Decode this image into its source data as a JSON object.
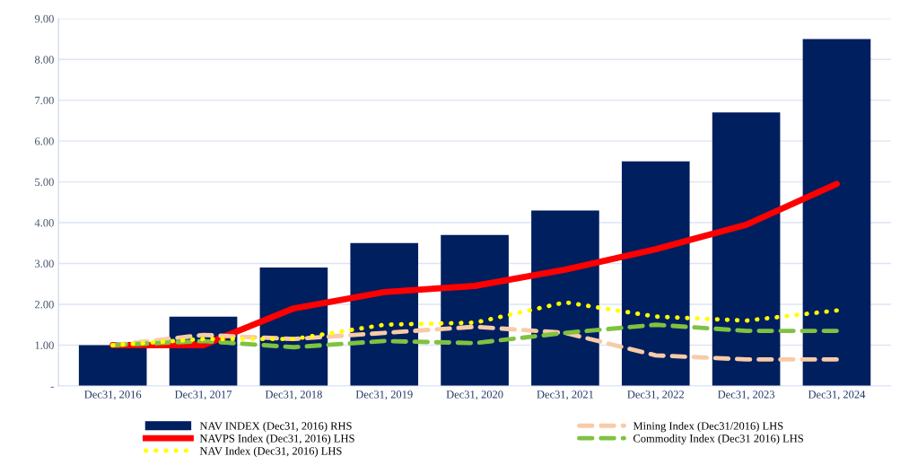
{
  "chart_data": {
    "type": "bar",
    "categories": [
      "Dec31, 2016",
      "Dec31, 2017",
      "Dec31, 2018",
      "Dec31, 2019",
      "Dec31, 2020",
      "Dec31, 2021",
      "Dec31, 2022",
      "Dec31, 2023",
      "Dec31, 2024"
    ],
    "series": [
      {
        "name": "NAV INDEX (Dec31, 2016) RHS",
        "color": "#001f5f",
        "values": [
          1.0,
          1.7,
          2.9,
          3.5,
          3.7,
          4.3,
          5.5,
          6.7,
          8.5
        ]
      },
      {
        "name": "NAVPS Index (Dec31, 2016) LHS",
        "type": "line",
        "color": "#ff0000",
        "line_style": "solid",
        "values": [
          1.0,
          1.0,
          1.9,
          2.3,
          2.45,
          2.85,
          3.35,
          3.95,
          4.95
        ]
      },
      {
        "name": "NAV Index (Dec31, 2016) LHS",
        "type": "line",
        "color": "#ffff00",
        "line_style": "dotted",
        "values": [
          1.0,
          1.15,
          1.15,
          1.5,
          1.55,
          2.05,
          1.7,
          1.6,
          1.85
        ]
      },
      {
        "name": "Mining Index (Dec31/2016) LHS",
        "type": "line",
        "color": "#f8cba8",
        "line_style": "dashed",
        "values": [
          1.0,
          1.25,
          1.15,
          1.3,
          1.45,
          1.3,
          0.75,
          0.65,
          0.65
        ]
      },
      {
        "name": "Commodity Index (Dec31 2016) LHS",
        "type": "line",
        "color": "#7fc241",
        "line_style": "dashed",
        "values": [
          1.0,
          1.1,
          0.95,
          1.1,
          1.05,
          1.3,
          1.5,
          1.35,
          1.35
        ]
      }
    ],
    "ylim": [
      0,
      9
    ],
    "yticks": [
      {
        "value": 0,
        "label": "-"
      },
      {
        "value": 1,
        "label": "1.00"
      },
      {
        "value": 2,
        "label": "2.00"
      },
      {
        "value": 3,
        "label": "3.00"
      },
      {
        "value": 4,
        "label": "4.00"
      },
      {
        "value": 5,
        "label": "5.00"
      },
      {
        "value": 6,
        "label": "6.00"
      },
      {
        "value": 7,
        "label": "7.00"
      },
      {
        "value": 8,
        "label": "8.00"
      },
      {
        "value": 9,
        "label": "9.00"
      }
    ],
    "grid": "y",
    "legend": "bottom"
  }
}
